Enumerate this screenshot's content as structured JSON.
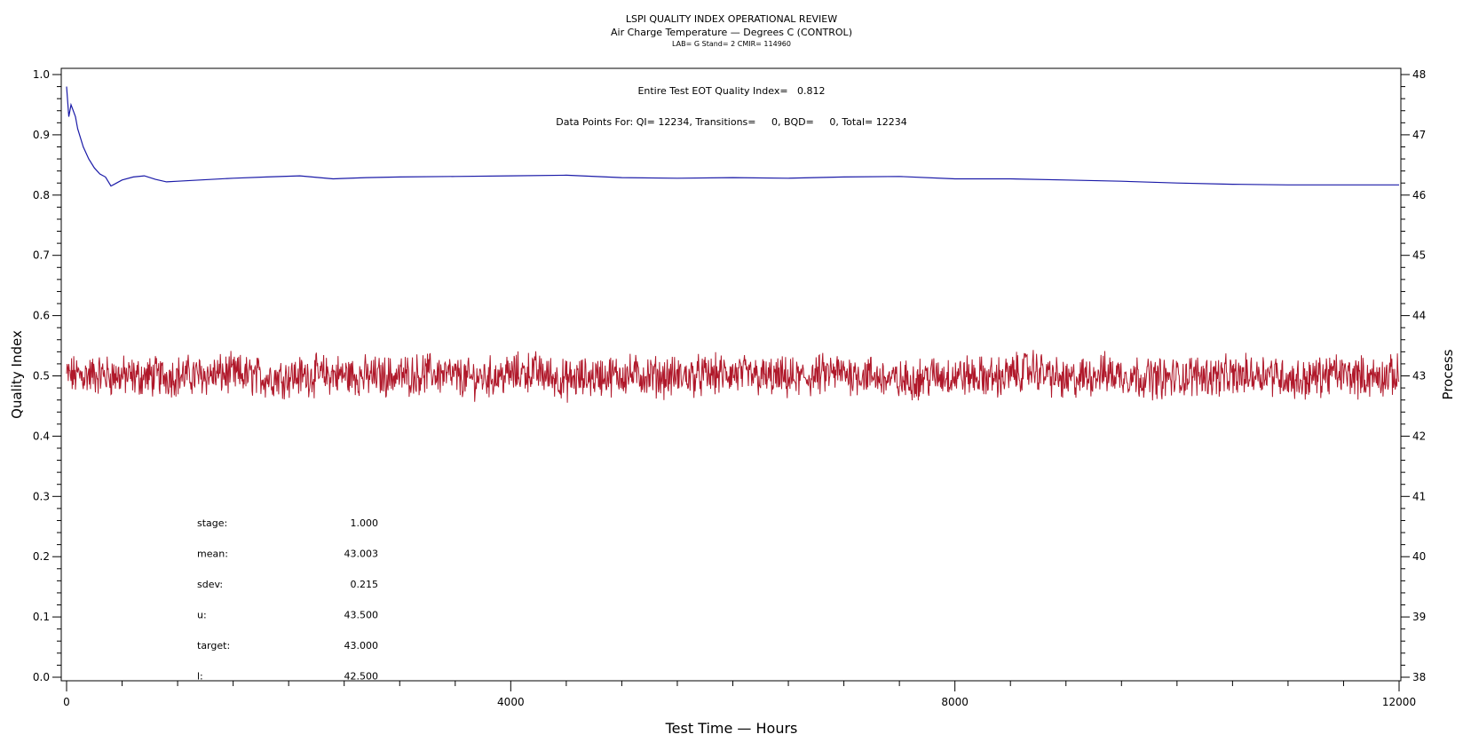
{
  "header": {
    "title": "LSPI QUALITY INDEX OPERATIONAL REVIEW",
    "subtitle": "Air Charge Temperature — Degrees C (CONTROL)",
    "meta": "LAB= G Stand= 2 CMIR= 114960"
  },
  "annotations": {
    "quality_index": "Entire Test EOT Quality Index=   0.812",
    "data_points": "Data Points For: QI= 12234, Transitions=     0, BQD=     0, Total= 12234"
  },
  "stats": [
    {
      "label": "stage:",
      "value": "1.000"
    },
    {
      "label": "mean:",
      "value": "43.003"
    },
    {
      "label": "sdev:",
      "value": "0.215"
    },
    {
      "label": "u:",
      "value": "43.500"
    },
    {
      "label": "target:",
      "value": "43.000"
    },
    {
      "label": "l:",
      "value": "42.500"
    }
  ],
  "chart_data": {
    "type": "line",
    "xlabel": "Test Time — Hours",
    "ylabel": "Quality Index",
    "y2label": "Process",
    "xlim": [
      0,
      12000
    ],
    "ylim": [
      0.0,
      1.0
    ],
    "y2lim": [
      38,
      48
    ],
    "x_ticks": [
      "0",
      "4000",
      "8000",
      "12000"
    ],
    "y_ticks": [
      "0.0",
      "0.1",
      "0.2",
      "0.3",
      "0.4",
      "0.5",
      "0.6",
      "0.7",
      "0.8",
      "0.9",
      "1.0"
    ],
    "y2_ticks": [
      "38",
      "39",
      "40",
      "41",
      "42",
      "43",
      "44",
      "45",
      "46",
      "47",
      "48"
    ],
    "colors": {
      "quality_index": "#1a1aa8",
      "process": "#b0182a"
    },
    "series": [
      {
        "axis": "left",
        "x": [
          0,
          20,
          40,
          60,
          80,
          100,
          150,
          200,
          250,
          300,
          350,
          400,
          450,
          500,
          600,
          700,
          800,
          900,
          1000,
          1200,
          1500,
          1800,
          2100,
          2400,
          2700,
          3000,
          3500,
          4000,
          4500,
          5000,
          5500,
          6000,
          6500,
          7000,
          7500,
          8000,
          8500,
          9000,
          9500,
          10000,
          10500,
          11000,
          11500,
          12000
        ],
        "values": [
          0.98,
          0.93,
          0.95,
          0.94,
          0.93,
          0.91,
          0.88,
          0.86,
          0.845,
          0.835,
          0.83,
          0.815,
          0.82,
          0.825,
          0.83,
          0.832,
          0.826,
          0.822,
          0.823,
          0.825,
          0.828,
          0.83,
          0.832,
          0.827,
          0.829,
          0.83,
          0.831,
          0.832,
          0.833,
          0.829,
          0.828,
          0.829,
          0.828,
          0.83,
          0.831,
          0.827,
          0.827,
          0.825,
          0.823,
          0.82,
          0.818,
          0.817,
          0.817,
          0.817
        ]
      },
      {
        "axis": "right",
        "x": [
          0,
          300,
          600,
          900,
          1200,
          1500,
          1800,
          2100,
          2400,
          2700,
          3000,
          3300,
          3600,
          3900,
          4200,
          4500,
          4800,
          5100,
          5400,
          5700,
          6000,
          6300,
          6600,
          6900,
          7200,
          7500,
          7800,
          8100,
          8400,
          8700,
          9000,
          9300,
          9600,
          9900,
          10200,
          10500,
          10800,
          11100,
          11400,
          11700,
          12000
        ],
        "values": [
          43.0,
          43.02,
          42.98,
          43.0,
          43.01,
          43.03,
          42.97,
          43.0,
          43.02,
          42.99,
          43.0,
          43.05,
          42.95,
          43.0,
          43.08,
          42.92,
          43.0,
          43.02,
          42.98,
          43.0,
          43.03,
          42.97,
          42.95,
          43.05,
          43.02,
          42.9,
          43.0,
          43.0,
          42.97,
          43.12,
          42.9,
          43.05,
          43.0,
          42.95,
          43.02,
          42.98,
          43.06,
          42.92,
          43.04,
          42.98,
          43.0
        ]
      }
    ]
  }
}
